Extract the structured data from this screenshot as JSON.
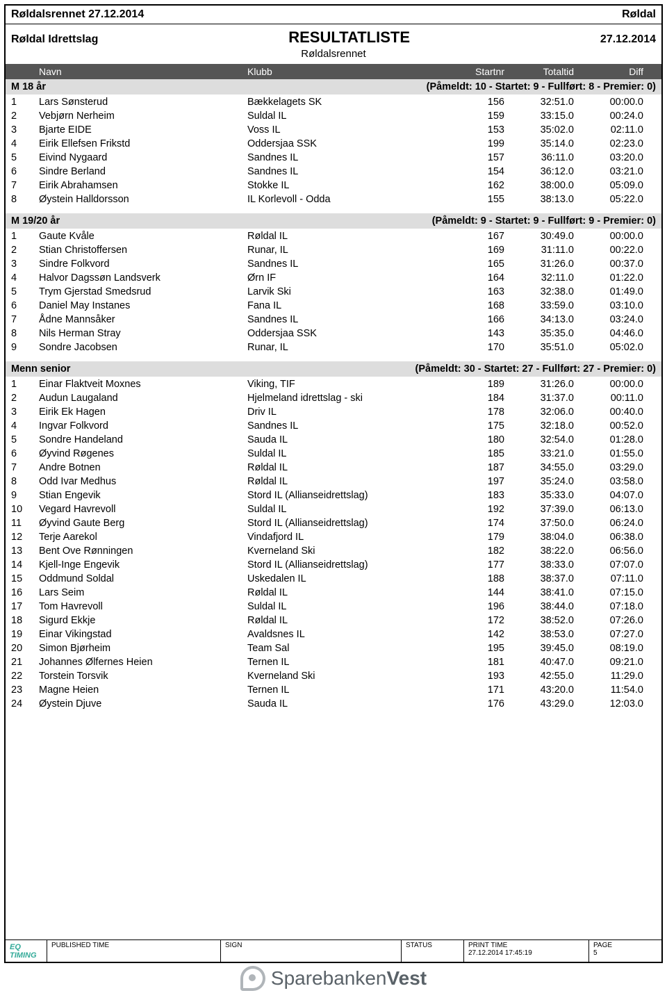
{
  "header": {
    "event_title_left": "Røldalsrennet 27.12.2014",
    "event_title_right": "Røldal",
    "organizer": "Røldal Idrettslag",
    "main_title": "RESULTATLISTE",
    "date": "27.12.2014",
    "subtitle": "Røldalsrennet"
  },
  "columns": {
    "name": "Navn",
    "club": "Klubb",
    "startnr": "Startnr",
    "total": "Totaltid",
    "diff": "Diff"
  },
  "categories": [
    {
      "name": "M 18 år",
      "summary": "(Påmeldt: 10  -  Startet: 9  -  Fullført: 8  -  Premier: 0)",
      "rows": [
        {
          "p": "1",
          "n": "Lars Sønsterud",
          "k": "Bækkelagets SK",
          "s": "156",
          "t": "32:51.0",
          "d": "00:00.0"
        },
        {
          "p": "2",
          "n": "Vebjørn Nerheim",
          "k": "Suldal IL",
          "s": "159",
          "t": "33:15.0",
          "d": "00:24.0"
        },
        {
          "p": "3",
          "n": "Bjarte EIDE",
          "k": "Voss IL",
          "s": "153",
          "t": "35:02.0",
          "d": "02:11.0"
        },
        {
          "p": "4",
          "n": "Eirik Ellefsen Frikstd",
          "k": "Oddersjaa SSK",
          "s": "199",
          "t": "35:14.0",
          "d": "02:23.0"
        },
        {
          "p": "5",
          "n": "Eivind Nygaard",
          "k": "Sandnes IL",
          "s": "157",
          "t": "36:11.0",
          "d": "03:20.0"
        },
        {
          "p": "6",
          "n": "Sindre Berland",
          "k": "Sandnes IL",
          "s": "154",
          "t": "36:12.0",
          "d": "03:21.0"
        },
        {
          "p": "7",
          "n": "Eirik Abrahamsen",
          "k": "Stokke IL",
          "s": "162",
          "t": "38:00.0",
          "d": "05:09.0"
        },
        {
          "p": "8",
          "n": "Øystein Halldorsson",
          "k": "IL Korlevoll - Odda",
          "s": "155",
          "t": "38:13.0",
          "d": "05:22.0"
        }
      ]
    },
    {
      "name": "M 19/20 år",
      "summary": "(Påmeldt: 9  -  Startet: 9  -  Fullført: 9  -  Premier: 0)",
      "rows": [
        {
          "p": "1",
          "n": "Gaute Kvåle",
          "k": "Røldal IL",
          "s": "167",
          "t": "30:49.0",
          "d": "00:00.0"
        },
        {
          "p": "2",
          "n": "Stian Christoffersen",
          "k": "Runar, IL",
          "s": "169",
          "t": "31:11.0",
          "d": "00:22.0"
        },
        {
          "p": "3",
          "n": "Sindre Folkvord",
          "k": "Sandnes IL",
          "s": "165",
          "t": "31:26.0",
          "d": "00:37.0"
        },
        {
          "p": "4",
          "n": "Halvor Dagssøn Landsverk",
          "k": "Ørn IF",
          "s": "164",
          "t": "32:11.0",
          "d": "01:22.0"
        },
        {
          "p": "5",
          "n": "Trym Gjerstad Smedsrud",
          "k": "Larvik Ski",
          "s": "163",
          "t": "32:38.0",
          "d": "01:49.0"
        },
        {
          "p": "6",
          "n": "Daniel May Instanes",
          "k": "Fana IL",
          "s": "168",
          "t": "33:59.0",
          "d": "03:10.0"
        },
        {
          "p": "7",
          "n": "Ådne Mannsåker",
          "k": "Sandnes IL",
          "s": "166",
          "t": "34:13.0",
          "d": "03:24.0"
        },
        {
          "p": "8",
          "n": "Nils Herman Stray",
          "k": "Oddersjaa SSK",
          "s": "143",
          "t": "35:35.0",
          "d": "04:46.0"
        },
        {
          "p": "9",
          "n": "Sondre Jacobsen",
          "k": "Runar, IL",
          "s": "170",
          "t": "35:51.0",
          "d": "05:02.0"
        }
      ]
    },
    {
      "name": "Menn senior",
      "summary": "(Påmeldt: 30  -  Startet: 27  -  Fullført: 27  -  Premier: 0)",
      "rows": [
        {
          "p": "1",
          "n": "Einar Flaktveit Moxnes",
          "k": "Viking, TIF",
          "s": "189",
          "t": "31:26.0",
          "d": "00:00.0"
        },
        {
          "p": "2",
          "n": "Audun Laugaland",
          "k": "Hjelmeland idrettslag - ski",
          "s": "184",
          "t": "31:37.0",
          "d": "00:11.0"
        },
        {
          "p": "3",
          "n": "Eirik Ek Hagen",
          "k": "Driv IL",
          "s": "178",
          "t": "32:06.0",
          "d": "00:40.0"
        },
        {
          "p": "4",
          "n": "Ingvar Folkvord",
          "k": "Sandnes IL",
          "s": "175",
          "t": "32:18.0",
          "d": "00:52.0"
        },
        {
          "p": "5",
          "n": "Sondre Handeland",
          "k": "Sauda IL",
          "s": "180",
          "t": "32:54.0",
          "d": "01:28.0"
        },
        {
          "p": "6",
          "n": "Øyvind Røgenes",
          "k": "Suldal IL",
          "s": "185",
          "t": "33:21.0",
          "d": "01:55.0"
        },
        {
          "p": "7",
          "n": "Andre Botnen",
          "k": "Røldal IL",
          "s": "187",
          "t": "34:55.0",
          "d": "03:29.0"
        },
        {
          "p": "8",
          "n": "Odd Ivar Medhus",
          "k": "Røldal IL",
          "s": "197",
          "t": "35:24.0",
          "d": "03:58.0"
        },
        {
          "p": "9",
          "n": "Stian Engevik",
          "k": "Stord IL (Allianseidrettslag)",
          "s": "183",
          "t": "35:33.0",
          "d": "04:07.0"
        },
        {
          "p": "10",
          "n": "Vegard Havrevoll",
          "k": "Suldal IL",
          "s": "192",
          "t": "37:39.0",
          "d": "06:13.0"
        },
        {
          "p": "11",
          "n": "Øyvind Gaute Berg",
          "k": "Stord IL (Allianseidrettslag)",
          "s": "174",
          "t": "37:50.0",
          "d": "06:24.0"
        },
        {
          "p": "12",
          "n": "Terje Aarekol",
          "k": "Vindafjord IL",
          "s": "179",
          "t": "38:04.0",
          "d": "06:38.0"
        },
        {
          "p": "13",
          "n": "Bent Ove Rønningen",
          "k": "Kverneland Ski",
          "s": "182",
          "t": "38:22.0",
          "d": "06:56.0"
        },
        {
          "p": "14",
          "n": "Kjell-Inge Engevik",
          "k": "Stord IL (Allianseidrettslag)",
          "s": "177",
          "t": "38:33.0",
          "d": "07:07.0"
        },
        {
          "p": "15",
          "n": "Oddmund Soldal",
          "k": "Uskedalen IL",
          "s": "188",
          "t": "38:37.0",
          "d": "07:11.0"
        },
        {
          "p": "16",
          "n": "Lars Seim",
          "k": "Røldal IL",
          "s": "144",
          "t": "38:41.0",
          "d": "07:15.0"
        },
        {
          "p": "17",
          "n": "Tom Havrevoll",
          "k": "Suldal IL",
          "s": "196",
          "t": "38:44.0",
          "d": "07:18.0"
        },
        {
          "p": "18",
          "n": "Sigurd Ekkje",
          "k": "Røldal IL",
          "s": "172",
          "t": "38:52.0",
          "d": "07:26.0"
        },
        {
          "p": "19",
          "n": "Einar Vikingstad",
          "k": "Avaldsnes IL",
          "s": "142",
          "t": "38:53.0",
          "d": "07:27.0"
        },
        {
          "p": "20",
          "n": "Simon Bjørheim",
          "k": "Team Sal",
          "s": "195",
          "t": "39:45.0",
          "d": "08:19.0"
        },
        {
          "p": "21",
          "n": "Johannes Ølfernes Heien",
          "k": "Ternen IL",
          "s": "181",
          "t": "40:47.0",
          "d": "09:21.0"
        },
        {
          "p": "22",
          "n": "Torstein Torsvik",
          "k": "Kverneland Ski",
          "s": "193",
          "t": "42:55.0",
          "d": "11:29.0"
        },
        {
          "p": "23",
          "n": "Magne Heien",
          "k": "Ternen IL",
          "s": "171",
          "t": "43:20.0",
          "d": "11:54.0"
        },
        {
          "p": "24",
          "n": "Øystein Djuve",
          "k": "Sauda IL",
          "s": "176",
          "t": "43:29.0",
          "d": "12:03.0"
        }
      ]
    }
  ],
  "footer": {
    "timing_brand": "EQ TIMING",
    "published_label": "PUBLISHED TIME",
    "sign_label": "SIGN",
    "status_label": "STATUS",
    "print_label": "PRINT TIME",
    "print_value": "27.12.2014 17:45:19",
    "page_label": "PAGE",
    "page_value": "5"
  },
  "sponsor": {
    "light": "Sparebanken",
    "bold": "Vest"
  }
}
